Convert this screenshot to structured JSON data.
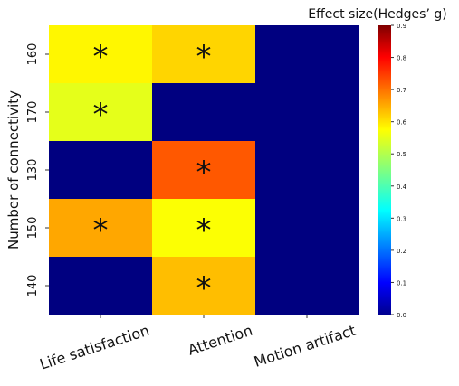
{
  "chart_data": {
    "type": "heatmap",
    "title": "",
    "xlabel": "",
    "ylabel": "Number of connectivity",
    "x_categories": [
      "Life satisfaction",
      "Attention",
      "Motion artifact"
    ],
    "y_categories": [
      "160",
      "170",
      "130",
      "150",
      "140"
    ],
    "values": [
      [
        0.57,
        0.6,
        0.0
      ],
      [
        0.54,
        0.0,
        0.0
      ],
      [
        0.0,
        0.71,
        0.0
      ],
      [
        0.64,
        0.56,
        0.0
      ],
      [
        0.0,
        0.62,
        0.0
      ]
    ],
    "significant": [
      [
        true,
        true,
        false
      ],
      [
        true,
        false,
        false
      ],
      [
        false,
        true,
        false
      ],
      [
        true,
        true,
        false
      ],
      [
        false,
        true,
        false
      ]
    ],
    "significance_marker": "*",
    "colorbar": {
      "label": "Effect size(Hedges’ g)",
      "range": [
        0.0,
        0.9
      ],
      "ticks": [
        "0.0",
        "0.1",
        "0.2",
        "0.3",
        "0.4",
        "0.5",
        "0.6",
        "0.7",
        "0.8",
        "0.9"
      ],
      "colormap": "jet"
    },
    "grid": false,
    "legend": "colorbar-right"
  }
}
